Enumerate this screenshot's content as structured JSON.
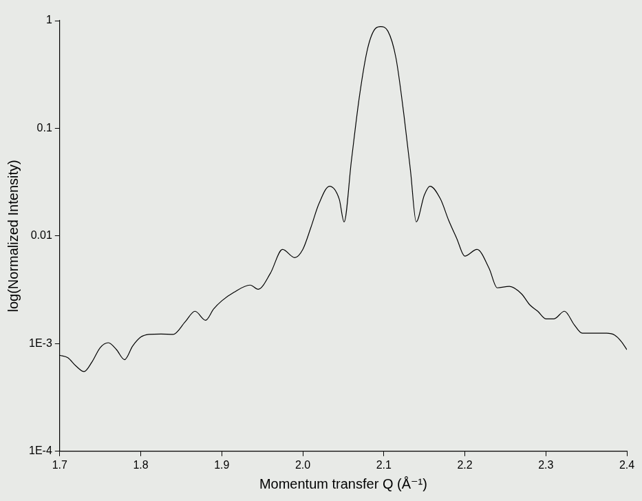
{
  "chart_data": {
    "type": "line",
    "x_label": "Momentum transfer Q (Å⁻¹)",
    "y_label": "log(Normalized Intensity)",
    "log": "y",
    "grid": false,
    "xlim": [
      1.7,
      2.4
    ],
    "xticks": [
      1.7,
      1.8,
      1.9,
      {
        "value": 2,
        "label": "2.0"
      },
      2.1,
      2.2,
      2.3,
      2.4
    ],
    "ylim": [
      0.0001,
      1
    ],
    "yticks": [
      {
        "value": 0.0001,
        "label": "1E-4"
      },
      {
        "value": 0.001,
        "label": "1E-3"
      },
      0.01,
      0.1,
      1
    ],
    "series": [
      {
        "color": "#000000",
        "x": [
          1.7,
          1.71,
          1.72,
          1.73,
          1.74,
          1.75,
          1.76,
          1.77,
          1.78,
          1.79,
          1.8,
          1.81,
          1.825,
          1.84,
          1.855,
          1.867,
          1.88,
          1.89,
          1.9,
          1.915,
          1.935,
          1.945,
          1.96,
          1.975,
          1.99,
          2.0,
          2.01,
          2.02,
          2.033,
          2.045,
          2.051,
          2.06,
          2.07,
          2.08,
          2.09,
          2.096,
          2.105,
          2.115,
          2.125,
          2.133,
          2.14,
          2.15,
          2.157,
          2.17,
          2.18,
          2.19,
          2.2,
          2.215,
          2.23,
          2.24,
          2.255,
          2.27,
          2.28,
          2.29,
          2.3,
          2.31,
          2.323,
          2.335,
          2.345,
          2.36,
          2.375,
          2.385,
          2.393,
          2.4
        ],
        "values": [
          0.00078,
          0.00074,
          0.00062,
          0.00055,
          0.00068,
          0.00092,
          0.00102,
          0.00088,
          0.00071,
          0.00095,
          0.00115,
          0.00122,
          0.00123,
          0.00122,
          0.0016,
          0.002,
          0.00165,
          0.0021,
          0.0025,
          0.003,
          0.0035,
          0.0032,
          0.0045,
          0.0075,
          0.0063,
          0.0075,
          0.012,
          0.02,
          0.029,
          0.022,
          0.0135,
          0.05,
          0.2,
          0.55,
          0.85,
          0.88,
          0.8,
          0.45,
          0.13,
          0.04,
          0.0135,
          0.024,
          0.029,
          0.022,
          0.014,
          0.0095,
          0.0065,
          0.0075,
          0.005,
          0.0033,
          0.0034,
          0.0029,
          0.0023,
          0.002,
          0.0017,
          0.0017,
          0.002,
          0.0015,
          0.00125,
          0.00125,
          0.00125,
          0.0012,
          0.00105,
          0.00088
        ]
      }
    ]
  }
}
